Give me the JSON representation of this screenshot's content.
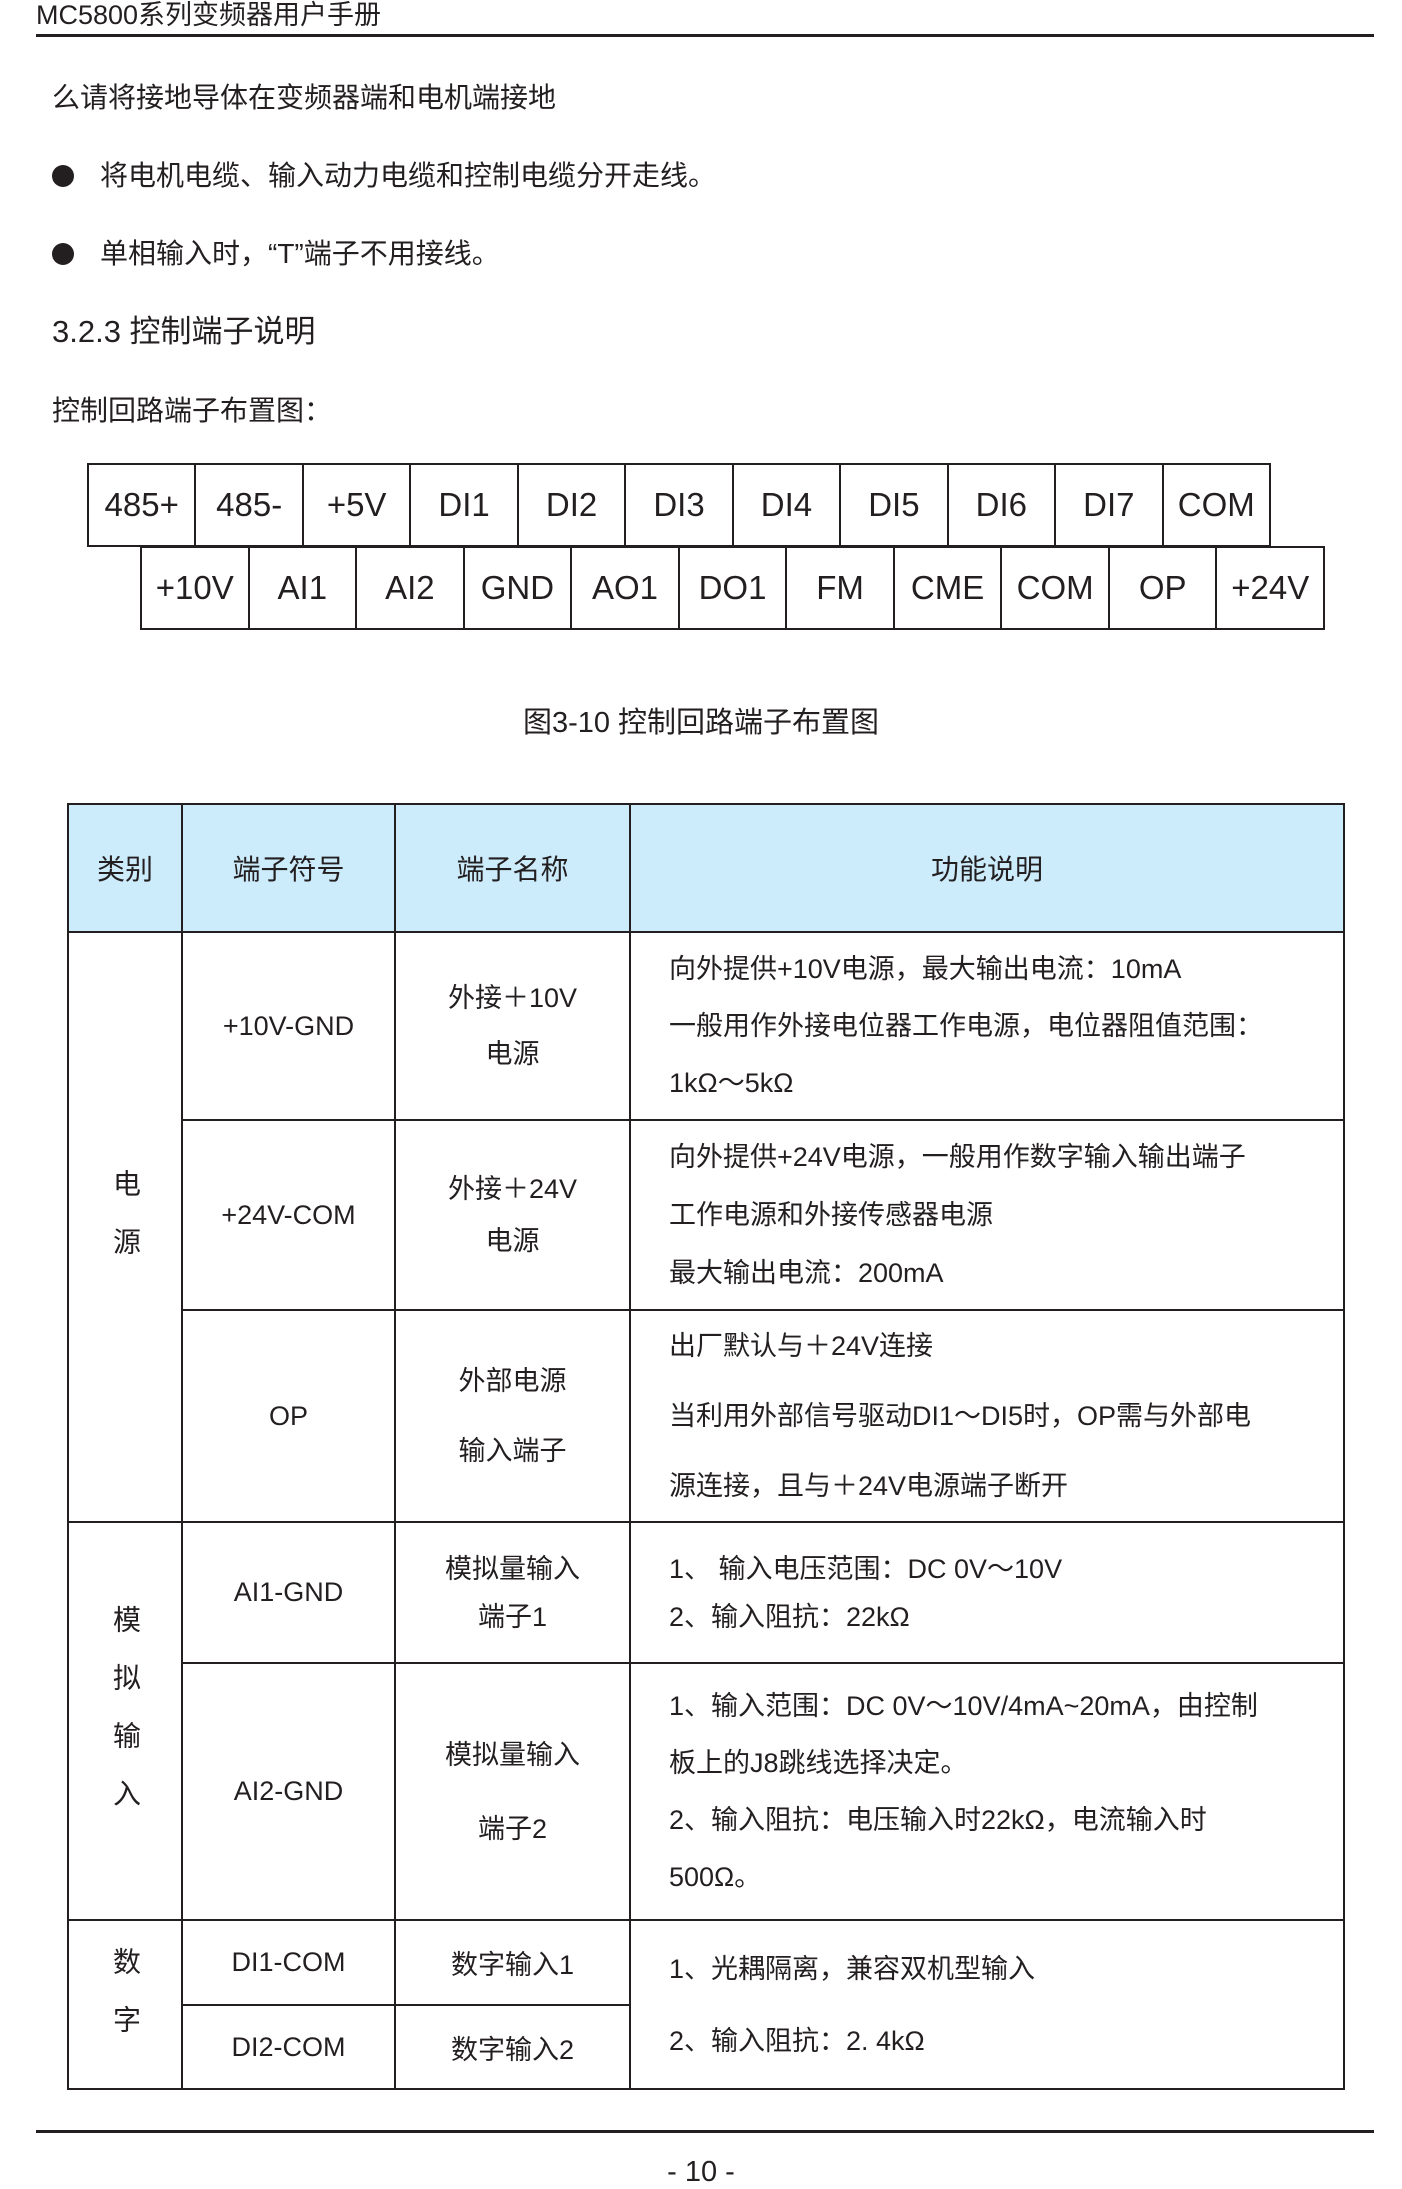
{
  "header": {
    "title": "MC5800系列变频器用户手册"
  },
  "body": {
    "line1": "么请将接地导体在变频器端和电机端接地",
    "bullets": [
      "将电机电缆、输入动力电缆和控制电缆分开走线。",
      "单相输入时，“T”端子不用接线。"
    ],
    "section_heading": "3.2.3 控制端子说明",
    "layout_label": "控制回路端子布置图："
  },
  "terminals": {
    "row1": [
      "485+",
      "485-",
      "+5V",
      "DI1",
      "DI2",
      "DI3",
      "DI4",
      "DI5",
      "DI6",
      "DI7",
      "COM"
    ],
    "row2": [
      "+10V",
      "AI1",
      "AI2",
      "GND",
      "AO1",
      "DO1",
      "FM",
      "CME",
      "COM",
      "OP",
      "+24V"
    ]
  },
  "figure_caption": "图3-10  控制回路端子布置图",
  "table": {
    "headers": [
      "类别",
      "端子符号",
      "端子名称",
      "功能说明"
    ],
    "categories": [
      "电源",
      "模拟输入",
      "数字"
    ],
    "rows": [
      {
        "symbol": "+10V-GND",
        "name": [
          "外接＋10V",
          "电源"
        ],
        "desc": [
          "向外提供+10V电源，最大输出电流：10mA",
          "一般用作外接电位器工作电源，电位器阻值范围：",
          "1kΩ～5kΩ"
        ]
      },
      {
        "symbol": "+24V-COM",
        "name": [
          "外接＋24V",
          "电源"
        ],
        "desc": [
          "向外提供+24V电源，一般用作数字输入输出端子",
          "工作电源和外接传感器电源",
          "最大输出电流：200mA"
        ]
      },
      {
        "symbol": "OP",
        "name": [
          "外部电源",
          "输入端子"
        ],
        "desc": [
          "出厂默认与＋24V连接",
          "当利用外部信号驱动DI1～DI5时，OP需与外部电",
          "源连接，且与＋24V电源端子断开"
        ]
      },
      {
        "symbol": "AI1-GND",
        "name": [
          "模拟量输入",
          "端子1"
        ],
        "desc": [
          "1、 输入电压范围：DC 0V～10V",
          "2、输入阻抗：22kΩ"
        ]
      },
      {
        "symbol": "AI2-GND",
        "name": [
          "模拟量输入",
          "端子2"
        ],
        "desc": [
          "1、输入范围：DC 0V～10V/4mA~20mA，由控制",
          "板上的J8跳线选择决定。",
          "2、输入阻抗：电压输入时22kΩ，电流输入时",
          "500Ω。"
        ]
      },
      {
        "symbol": "DI1-COM",
        "name": [
          "数字输入1"
        ]
      },
      {
        "symbol": "DI2-COM",
        "name": [
          "数字输入2"
        ]
      }
    ],
    "digital_desc": [
      "1、光耦隔离，兼容双机型输入",
      "2、输入阻抗：2. 4kΩ"
    ],
    "header_color": "#cdecfb"
  },
  "footer": {
    "page_number": "- 10 -"
  }
}
